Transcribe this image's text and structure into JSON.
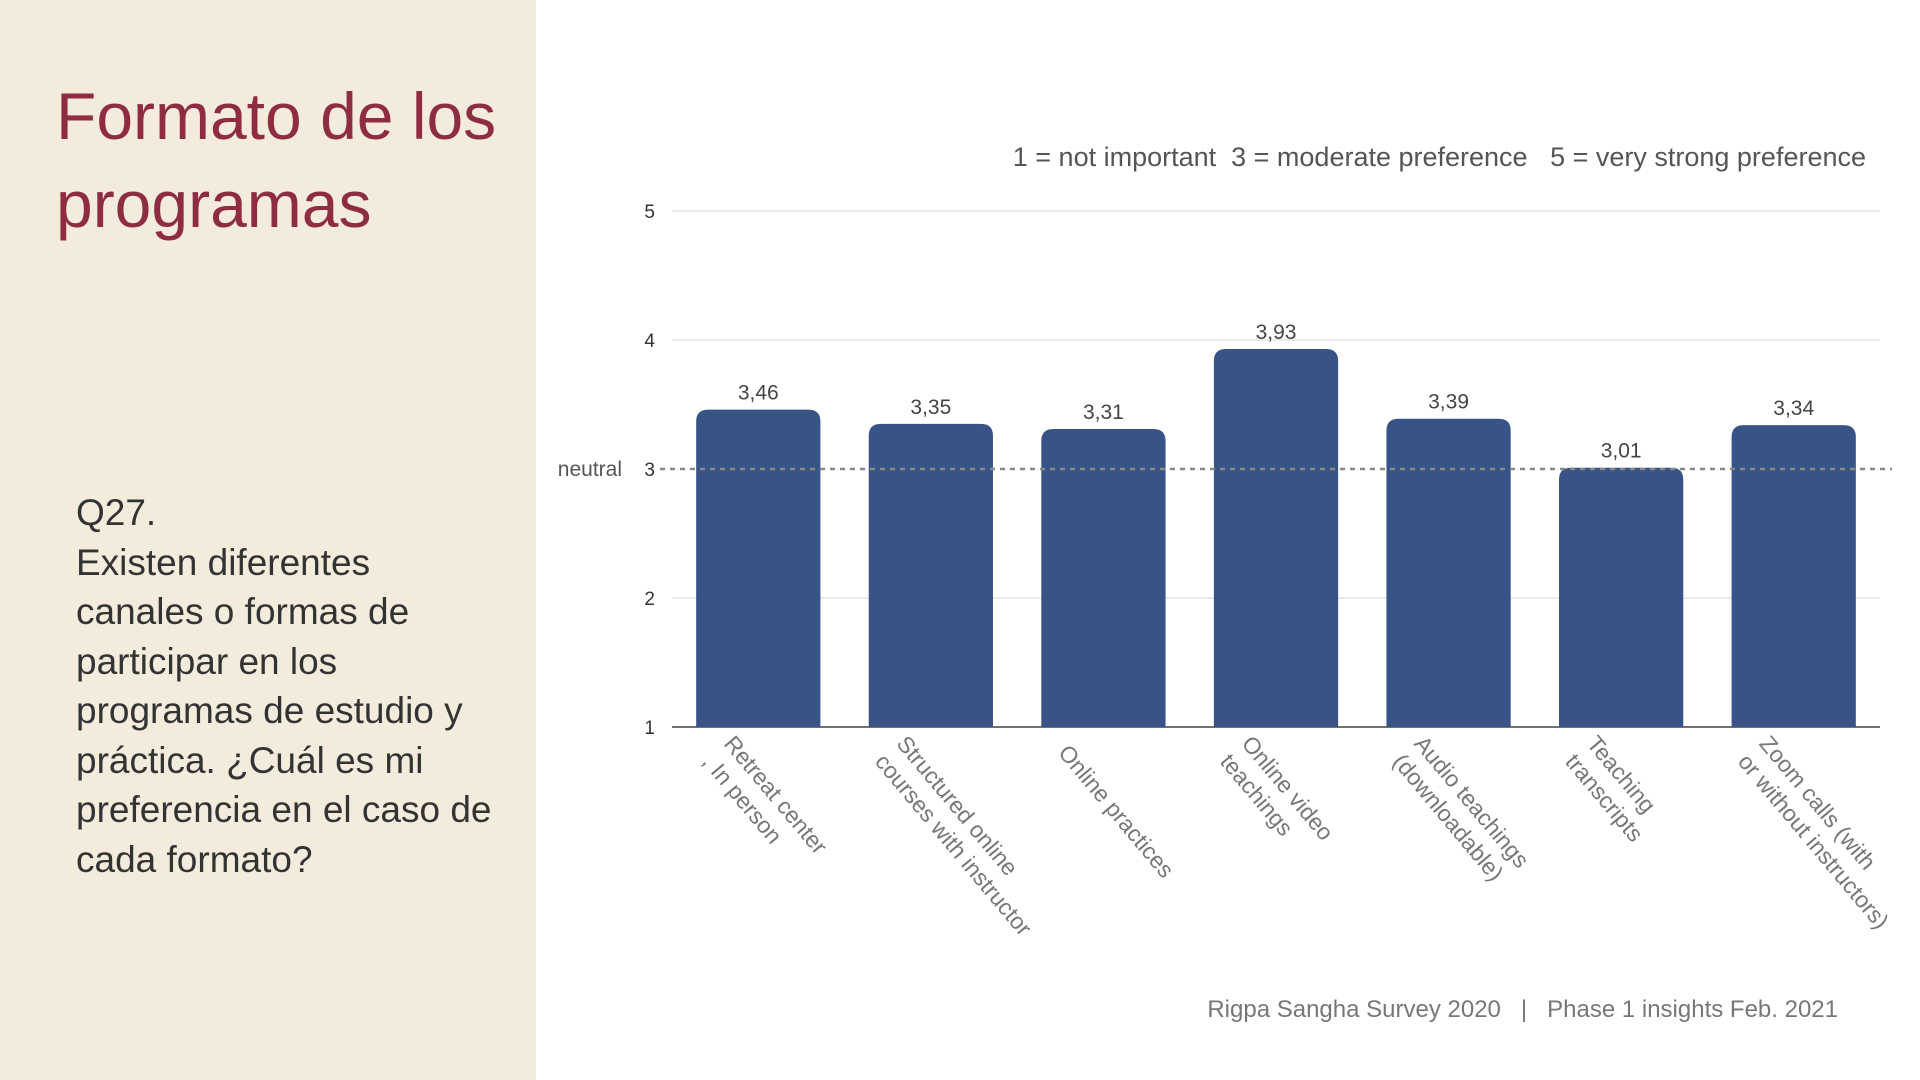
{
  "slide": {
    "title": "Formato de los programas",
    "question_number": "Q27.",
    "question_text": "Existen diferentes canales o formas de participar en los programas de estudio y práctica. ¿Cuál es mi preferencia en el caso de cada formato?",
    "scale_legend": "1 = not important  3 = moderate preference   5 = very strong preference",
    "footer": "Rigpa Sangha Survey 2020   |   Phase 1 insights Feb. 2021"
  },
  "colors": {
    "title": "#8e2d42",
    "panel_background": "#f3ecdd",
    "bar": "#385487",
    "gridline": "#d6d6d6",
    "neutral_line": "#888888"
  },
  "chart_data": {
    "type": "bar",
    "categories": [
      [
        "Retreat center",
        ", In person"
      ],
      [
        "Structured online",
        "courses with instructor"
      ],
      [
        "Online practices"
      ],
      [
        "Online video",
        "teachings"
      ],
      [
        "Audio teachings",
        "(downloadable)"
      ],
      [
        "Teaching",
        "transcripts"
      ],
      [
        "Zoom calls (with",
        "or without instructors)"
      ]
    ],
    "values": [
      3.46,
      3.35,
      3.31,
      3.93,
      3.39,
      3.01,
      3.34
    ],
    "value_labels": [
      "3,46",
      "3,35",
      "3,31",
      "3,93",
      "3,39",
      "3,01",
      "3,34"
    ],
    "ylim": [
      1,
      5
    ],
    "yticks": [
      "1",
      "2",
      "3",
      "4",
      "5"
    ],
    "grid": true,
    "reference_line": {
      "value": 3,
      "label": "neutral",
      "style": "dashed"
    }
  }
}
